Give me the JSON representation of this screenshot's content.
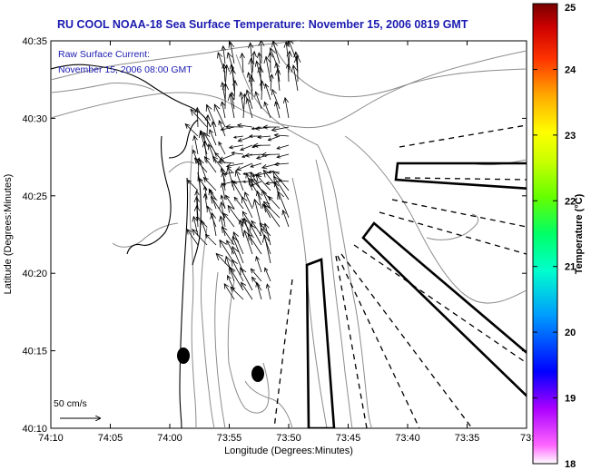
{
  "title": "RU COOL  NOAA-18  Sea Surface Temperature:  November 15, 2006 0819 GMT",
  "legend": {
    "line1": "Raw Surface Current:",
    "line2": "November 15, 2006 08:00 GMT"
  },
  "axes": {
    "xlabel": "Longitude (Degrees:Minutes)",
    "ylabel": "Latitude (Degrees:Minutes)",
    "xticks": [
      "74:10",
      "74:05",
      "74:00",
      "73:55",
      "73:50",
      "73:45",
      "73:40",
      "73:35",
      "73:3"
    ],
    "yticks": [
      "40:35",
      "40:30",
      "40:25",
      "40:20",
      "40:15",
      "40:10"
    ]
  },
  "colorbar": {
    "label": "Temperature (°C)",
    "ticks": [
      "25",
      "24",
      "23",
      "22",
      "21",
      "20",
      "19",
      "18"
    ],
    "range": [
      18,
      25
    ],
    "colors": [
      "#ff00ff",
      "#0000ff",
      "#00ccff",
      "#00ff99",
      "#66ff00",
      "#ffff00",
      "#ff9900",
      "#ff0000",
      "#990000"
    ]
  },
  "scale": {
    "label": "50 cm/s"
  },
  "map": {
    "lon_range": [
      "74:10",
      "73:3"
    ],
    "lat_range": [
      "40:10",
      "40:35"
    ],
    "line_color": "#888888",
    "coast_color": "#000000"
  }
}
